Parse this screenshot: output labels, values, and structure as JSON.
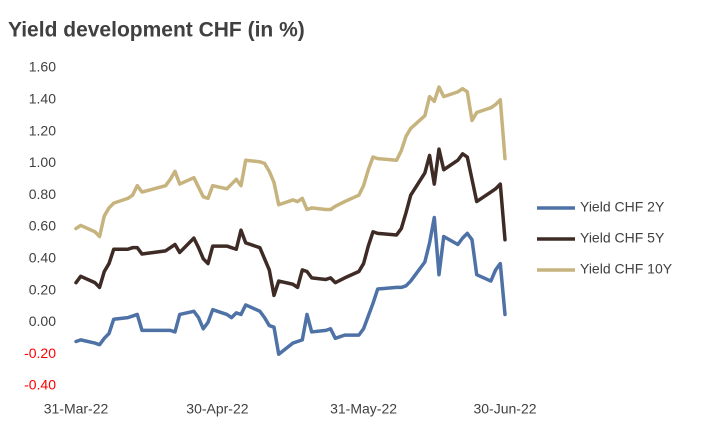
{
  "chart_data": {
    "type": "line",
    "title": "Yield development CHF (in %)",
    "x": [
      "2022-03-31",
      "2022-04-01",
      "2022-04-04",
      "2022-04-05",
      "2022-04-06",
      "2022-04-07",
      "2022-04-08",
      "2022-04-11",
      "2022-04-12",
      "2022-04-13",
      "2022-04-14",
      "2022-04-19",
      "2022-04-20",
      "2022-04-21",
      "2022-04-22",
      "2022-04-25",
      "2022-04-26",
      "2022-04-27",
      "2022-04-28",
      "2022-04-29",
      "2022-05-02",
      "2022-05-03",
      "2022-05-04",
      "2022-05-05",
      "2022-05-06",
      "2022-05-09",
      "2022-05-10",
      "2022-05-11",
      "2022-05-12",
      "2022-05-13",
      "2022-05-16",
      "2022-05-17",
      "2022-05-18",
      "2022-05-19",
      "2022-05-20",
      "2022-05-23",
      "2022-05-24",
      "2022-05-25",
      "2022-05-27",
      "2022-05-30",
      "2022-05-31",
      "2022-06-01",
      "2022-06-02",
      "2022-06-03",
      "2022-06-07",
      "2022-06-08",
      "2022-06-09",
      "2022-06-10",
      "2022-06-13",
      "2022-06-14",
      "2022-06-15",
      "2022-06-16",
      "2022-06-17",
      "2022-06-20",
      "2022-06-21",
      "2022-06-22",
      "2022-06-23",
      "2022-06-24",
      "2022-06-27",
      "2022-06-28",
      "2022-06-29",
      "2022-06-30"
    ],
    "series": [
      {
        "name": "Yield CHF 2Y",
        "color": "#4f72a6",
        "values": [
          -0.12,
          -0.11,
          -0.13,
          -0.14,
          -0.1,
          -0.07,
          0.02,
          0.03,
          0.04,
          0.05,
          -0.05,
          -0.05,
          -0.05,
          -0.06,
          0.05,
          0.07,
          0.03,
          -0.04,
          0.0,
          0.08,
          0.05,
          0.03,
          0.06,
          0.05,
          0.11,
          0.07,
          0.03,
          -0.02,
          -0.03,
          -0.2,
          -0.13,
          -0.12,
          -0.11,
          0.05,
          -0.06,
          -0.05,
          -0.04,
          -0.1,
          -0.08,
          -0.08,
          -0.04,
          0.04,
          0.12,
          0.21,
          0.22,
          0.22,
          0.23,
          0.26,
          0.38,
          0.5,
          0.66,
          0.3,
          0.54,
          0.49,
          0.53,
          0.56,
          0.52,
          0.3,
          0.26,
          0.33,
          0.37,
          0.05
        ]
      },
      {
        "name": "Yield CHF 5Y",
        "color": "#3e2b25",
        "values": [
          0.25,
          0.29,
          0.25,
          0.22,
          0.32,
          0.37,
          0.46,
          0.46,
          0.47,
          0.47,
          0.43,
          0.45,
          0.47,
          0.49,
          0.44,
          0.53,
          0.47,
          0.4,
          0.37,
          0.48,
          0.48,
          0.47,
          0.46,
          0.58,
          0.5,
          0.47,
          0.4,
          0.33,
          0.17,
          0.26,
          0.24,
          0.22,
          0.33,
          0.32,
          0.28,
          0.27,
          0.28,
          0.25,
          0.28,
          0.32,
          0.37,
          0.48,
          0.57,
          0.56,
          0.55,
          0.59,
          0.69,
          0.8,
          0.94,
          1.05,
          0.87,
          1.09,
          0.96,
          1.02,
          1.06,
          1.04,
          0.9,
          0.76,
          0.82,
          0.84,
          0.87,
          0.52
        ]
      },
      {
        "name": "Yield CHF 10Y",
        "color": "#c6b37e",
        "values": [
          0.59,
          0.61,
          0.57,
          0.54,
          0.67,
          0.72,
          0.75,
          0.78,
          0.8,
          0.86,
          0.82,
          0.86,
          0.9,
          0.95,
          0.87,
          0.91,
          0.85,
          0.79,
          0.78,
          0.86,
          0.84,
          0.87,
          0.9,
          0.86,
          1.02,
          1.01,
          1.0,
          0.95,
          0.88,
          0.74,
          0.77,
          0.76,
          0.78,
          0.71,
          0.72,
          0.71,
          0.71,
          0.73,
          0.76,
          0.8,
          0.86,
          0.96,
          1.04,
          1.03,
          1.02,
          1.08,
          1.17,
          1.22,
          1.3,
          1.42,
          1.39,
          1.48,
          1.42,
          1.45,
          1.47,
          1.45,
          1.27,
          1.32,
          1.35,
          1.37,
          1.4,
          1.03
        ]
      }
    ],
    "xlim": [
      "2022-03-31",
      "2022-06-30"
    ],
    "xticks": [
      {
        "value": "2022-03-31",
        "label": "31-Mar-22"
      },
      {
        "value": "2022-04-30",
        "label": "30-Apr-22"
      },
      {
        "value": "2022-05-31",
        "label": "31-May-22"
      },
      {
        "value": "2022-06-30",
        "label": "30-Jun-22"
      }
    ],
    "ylim": [
      -0.4,
      1.6
    ],
    "yticks": [
      {
        "value": -0.4,
        "label": "-0.40"
      },
      {
        "value": -0.2,
        "label": "-0.20"
      },
      {
        "value": 0,
        "label": "0.00"
      },
      {
        "value": 0.2,
        "label": "0.20"
      },
      {
        "value": 0.4,
        "label": "0.40"
      },
      {
        "value": 0.6,
        "label": "0.60"
      },
      {
        "value": 0.8,
        "label": "0.80"
      },
      {
        "value": 1.0,
        "label": "1.00"
      },
      {
        "value": 1.2,
        "label": "1.20"
      },
      {
        "value": 1.4,
        "label": "1.40"
      },
      {
        "value": 1.6,
        "label": "1.60"
      }
    ],
    "negative_tick_color": "#ff0000",
    "grid": false,
    "legend": "right"
  }
}
